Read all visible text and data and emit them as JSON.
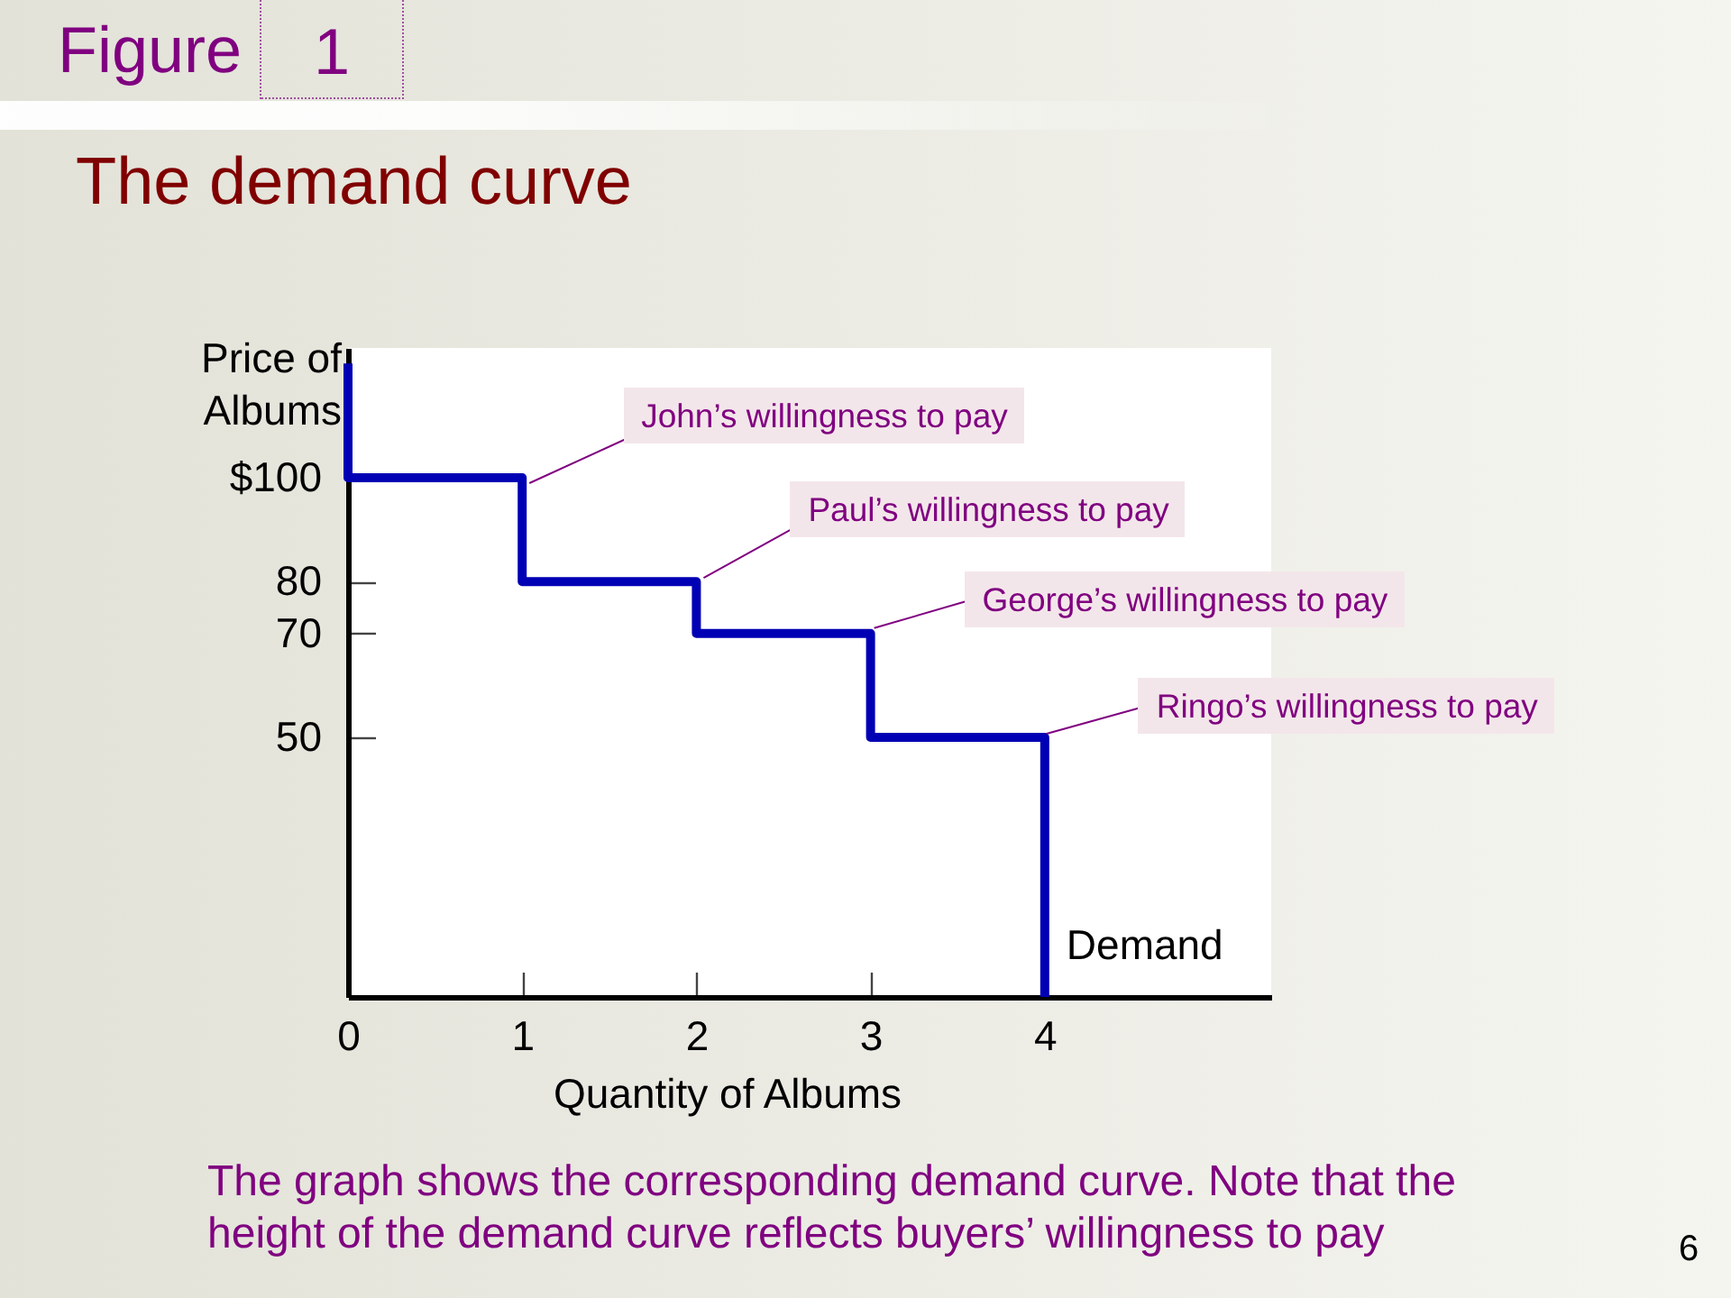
{
  "chart_data": {
    "type": "line",
    "title": "The demand curve",
    "xlabel": "Quantity of Albums",
    "ylabel": "Price of\nAlbums",
    "x": [
      0,
      0,
      1,
      1,
      2,
      2,
      3,
      3,
      4,
      4
    ],
    "series": [
      {
        "name": "Demand",
        "color": "#0000b4",
        "values": [
          122,
          100,
          100,
          80,
          80,
          70,
          70,
          50,
          50,
          0
        ]
      }
    ],
    "xlim": [
      0,
      5.3
    ],
    "xticks": [
      0,
      1,
      2,
      3,
      4
    ],
    "ylim": [
      0,
      125
    ],
    "yticks": [
      50,
      70,
      80,
      {
        "value": 100,
        "label": "$100"
      }
    ],
    "annotations": [
      "Figure 1",
      {
        "text": "John’s willingness to pay",
        "x": 1,
        "y": 100
      },
      {
        "text": "Paul’s willingness to pay",
        "x": 2,
        "y": 80
      },
      {
        "text": "George’s willingness to pay",
        "x": 3,
        "y": 70
      },
      {
        "text": "Ringo’s willingness to pay",
        "x": 4,
        "y": 50
      },
      "The graph shows the corresponding demand curve. Note that the height of the demand curve reflects buyers’ willingness to pay",
      "6"
    ],
    "grid": false,
    "legend": false,
    "marker": "none",
    "line_style": "solid"
  }
}
